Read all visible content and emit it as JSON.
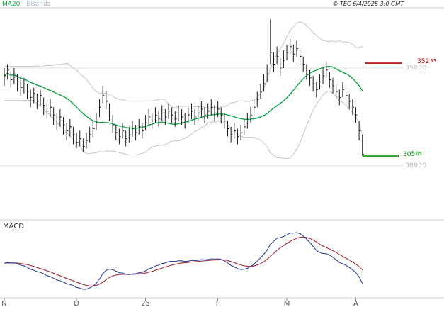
{
  "header": {
    "legend": {
      "ma20_label": "MA20",
      "ma20_color": "#00a13e",
      "bbands_label": "BBands",
      "bbands_color": "#a9b8c0"
    },
    "copyright": "© TEC 6/4/2025 3:0 GMT"
  },
  "price_axis": {
    "labels": [
      {
        "text": "35000",
        "value": 350
      },
      {
        "text": "30000",
        "value": 300
      }
    ],
    "resistance": {
      "text_main": "352",
      "text_dec": "53",
      "value": 352.53,
      "color": "#b00000"
    },
    "support": {
      "text_main": "305",
      "text_dec": "05",
      "value": 305.05,
      "color": "#00920a"
    }
  },
  "macd_panel": {
    "label": "MACD",
    "macd_color": "#2b3f9e",
    "signal_color": "#a52a3a"
  },
  "chart_data": {
    "type": "bar",
    "variant": "daily-ohlc-bars-with-ma20-bollinger-and-macd",
    "title": "",
    "xlabel": "",
    "ylabel": "",
    "x_ticks": [
      {
        "label": "N",
        "index": 0
      },
      {
        "label": "D",
        "index": 22
      },
      {
        "label": "25",
        "index": 43
      },
      {
        "label": "F",
        "index": 65
      },
      {
        "label": "M",
        "index": 86
      },
      {
        "label": "A",
        "index": 107
      }
    ],
    "price_gridlines": [
      350,
      300
    ],
    "ylim_price": [
      276,
      381
    ],
    "highs": [
      350,
      352,
      348,
      350,
      347,
      344,
      345,
      342,
      339,
      340,
      337,
      339,
      335,
      332,
      334,
      330,
      327,
      329,
      325,
      322,
      324,
      320,
      317,
      318,
      314,
      317,
      320,
      323,
      327,
      334,
      341,
      338,
      332,
      326,
      321,
      319,
      322,
      318,
      320,
      323,
      321,
      324,
      322,
      326,
      329,
      327,
      330,
      328,
      331,
      329,
      332,
      330,
      328,
      331,
      329,
      327,
      330,
      332,
      329,
      331,
      333,
      330,
      332,
      334,
      331,
      333,
      330,
      327,
      323,
      320,
      322,
      319,
      321,
      324,
      327,
      330,
      334,
      338,
      342,
      347,
      352,
      375,
      358,
      361,
      355,
      359,
      362,
      365,
      362,
      364,
      360,
      356,
      352,
      349,
      346,
      343,
      347,
      350,
      353,
      348,
      345,
      342,
      339,
      343,
      340,
      337,
      334,
      330,
      323,
      316
    ],
    "lows": [
      341,
      344,
      340,
      342,
      338,
      336,
      337,
      334,
      330,
      332,
      329,
      331,
      326,
      324,
      325,
      321,
      318,
      320,
      316,
      313,
      315,
      311,
      309,
      310,
      307,
      309,
      312,
      315,
      318,
      325,
      332,
      329,
      323,
      317,
      313,
      311,
      314,
      310,
      312,
      315,
      313,
      316,
      314,
      318,
      321,
      319,
      322,
      320,
      323,
      321,
      324,
      322,
      320,
      323,
      321,
      319,
      322,
      324,
      321,
      323,
      325,
      322,
      324,
      326,
      323,
      325,
      322,
      319,
      315,
      312,
      314,
      311,
      313,
      316,
      319,
      322,
      326,
      330,
      334,
      338,
      343,
      352,
      348,
      352,
      346,
      350,
      354,
      357,
      353,
      356,
      352,
      348,
      344,
      341,
      338,
      335,
      339,
      342,
      345,
      340,
      337,
      334,
      331,
      335,
      332,
      329,
      326,
      322,
      313,
      305
    ],
    "closes": [
      346,
      349,
      344,
      347,
      343,
      340,
      342,
      338,
      335,
      337,
      333,
      336,
      331,
      328,
      330,
      326,
      323,
      325,
      321,
      318,
      320,
      316,
      312,
      314,
      310,
      313,
      316,
      319,
      322,
      330,
      336,
      333,
      327,
      321,
      317,
      315,
      318,
      314,
      316,
      319,
      317,
      320,
      318,
      322,
      325,
      323,
      326,
      324,
      327,
      325,
      328,
      326,
      324,
      327,
      325,
      323,
      326,
      328,
      325,
      327,
      329,
      326,
      328,
      330,
      327,
      329,
      326,
      323,
      319,
      316,
      318,
      315,
      317,
      320,
      323,
      326,
      330,
      334,
      338,
      342,
      347,
      358,
      352,
      356,
      350,
      354,
      358,
      361,
      357,
      360,
      356,
      352,
      348,
      345,
      342,
      339,
      343,
      346,
      349,
      344,
      341,
      338,
      335,
      339,
      336,
      333,
      330,
      326,
      318,
      306
    ],
    "overlays": {
      "ma_period": 20,
      "bollinger_period": 20,
      "bollinger_mult": 2,
      "macd_periods": [
        12,
        26,
        9
      ]
    },
    "colors": {
      "bars": "#1a1a1a",
      "bbands": "#c4c4c4",
      "ma20": "#00a13e",
      "grid": "#e2e2e2",
      "frame": "#cfcfcf",
      "tick": "#888888"
    }
  }
}
